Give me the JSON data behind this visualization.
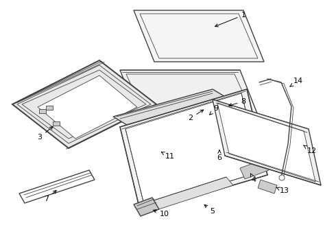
{
  "background_color": "#ffffff",
  "line_color": "#404040",
  "label_color": "#000000",
  "lw_thin": 0.6,
  "lw_med": 1.0,
  "lw_thick": 1.4
}
